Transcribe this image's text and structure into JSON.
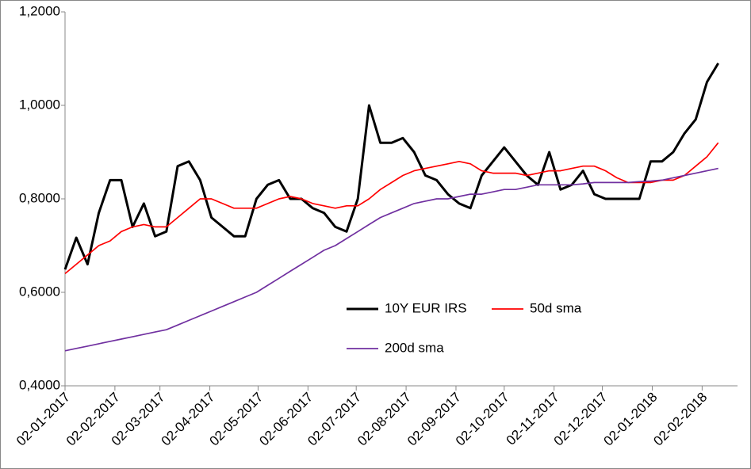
{
  "chart_data": {
    "type": "line",
    "x": [
      "02-01-2017",
      "09-01-2017",
      "16-01-2017",
      "23-01-2017",
      "30-01-2017",
      "06-02-2017",
      "13-02-2017",
      "20-02-2017",
      "27-02-2017",
      "06-03-2017",
      "13-03-2017",
      "20-03-2017",
      "27-03-2017",
      "03-04-2017",
      "10-04-2017",
      "17-04-2017",
      "24-04-2017",
      "01-05-2017",
      "08-05-2017",
      "15-05-2017",
      "22-05-2017",
      "29-05-2017",
      "05-06-2017",
      "12-06-2017",
      "19-06-2017",
      "26-06-2017",
      "03-07-2017",
      "10-07-2017",
      "17-07-2017",
      "24-07-2017",
      "31-07-2017",
      "07-08-2017",
      "14-08-2017",
      "21-08-2017",
      "28-08-2017",
      "04-09-2017",
      "11-09-2017",
      "18-09-2017",
      "25-09-2017",
      "02-10-2017",
      "09-10-2017",
      "16-10-2017",
      "23-10-2017",
      "30-10-2017",
      "06-11-2017",
      "13-11-2017",
      "20-11-2017",
      "27-11-2017",
      "04-12-2017",
      "11-12-2017",
      "18-12-2017",
      "25-12-2017",
      "01-01-2018",
      "08-01-2018",
      "15-01-2018",
      "22-01-2018",
      "29-01-2018",
      "05-02-2018",
      "12-02-2018"
    ],
    "series": [
      {
        "name": "10Y EUR IRS",
        "color": "#000000",
        "values": [
          0.649,
          0.717,
          0.66,
          0.77,
          0.84,
          0.84,
          0.74,
          0.79,
          0.72,
          0.73,
          0.87,
          0.88,
          0.84,
          0.76,
          0.74,
          0.72,
          0.72,
          0.8,
          0.83,
          0.84,
          0.8,
          0.8,
          0.78,
          0.77,
          0.74,
          0.73,
          0.8,
          1.0,
          0.92,
          0.92,
          0.93,
          0.9,
          0.85,
          0.84,
          0.81,
          0.79,
          0.78,
          0.85,
          0.88,
          0.91,
          0.88,
          0.85,
          0.83,
          0.9,
          0.82,
          0.83,
          0.86,
          0.81,
          0.8,
          0.8,
          0.8,
          0.8,
          0.88,
          0.88,
          0.9,
          0.94,
          0.97,
          1.05,
          1.09
        ]
      },
      {
        "name": "50d sma",
        "color": "#ff0000",
        "values": [
          0.64,
          0.66,
          0.68,
          0.7,
          0.71,
          0.73,
          0.74,
          0.745,
          0.74,
          0.74,
          0.76,
          0.78,
          0.8,
          0.8,
          0.79,
          0.78,
          0.78,
          0.78,
          0.79,
          0.8,
          0.805,
          0.8,
          0.79,
          0.785,
          0.78,
          0.785,
          0.785,
          0.8,
          0.82,
          0.835,
          0.85,
          0.86,
          0.865,
          0.87,
          0.875,
          0.88,
          0.875,
          0.86,
          0.855,
          0.855,
          0.855,
          0.85,
          0.855,
          0.86,
          0.86,
          0.865,
          0.87,
          0.87,
          0.86,
          0.845,
          0.835,
          0.835,
          0.835,
          0.84,
          0.84,
          0.85,
          0.87,
          0.89,
          0.92
        ]
      },
      {
        "name": "200d sma",
        "color": "#7030a0",
        "values": [
          0.475,
          0.48,
          0.485,
          0.49,
          0.495,
          0.5,
          0.505,
          0.51,
          0.515,
          0.52,
          0.53,
          0.54,
          0.55,
          0.56,
          0.57,
          0.58,
          0.59,
          0.6,
          0.615,
          0.63,
          0.645,
          0.66,
          0.675,
          0.69,
          0.7,
          0.715,
          0.73,
          0.745,
          0.76,
          0.77,
          0.78,
          0.79,
          0.795,
          0.8,
          0.8,
          0.805,
          0.81,
          0.81,
          0.815,
          0.82,
          0.82,
          0.825,
          0.83,
          0.83,
          0.83,
          0.83,
          0.832,
          0.835,
          0.835,
          0.835,
          0.835,
          0.837,
          0.838,
          0.84,
          0.845,
          0.85,
          0.855,
          0.86,
          0.865
        ]
      }
    ],
    "xlim": [
      "02-01-2017",
      "24-02-2018"
    ],
    "xticks": [
      "02-01-2017",
      "02-02-2017",
      "02-03-2017",
      "02-04-2017",
      "02-05-2017",
      "02-06-2017",
      "02-07-2017",
      "02-08-2017",
      "02-09-2017",
      "02-10-2017",
      "02-11-2017",
      "02-12-2017",
      "02-01-2018",
      "02-02-2018"
    ],
    "ylim": [
      0.4,
      1.2
    ],
    "yticks": [
      {
        "value": 0.4,
        "label": "0,4000"
      },
      {
        "value": 0.6,
        "label": "0,6000"
      },
      {
        "value": 0.8,
        "label": "0,8000"
      },
      {
        "value": 1.0,
        "label": "1,0000"
      },
      {
        "value": 1.2,
        "label": "1,2000"
      }
    ],
    "grid": false,
    "legend": "center"
  }
}
